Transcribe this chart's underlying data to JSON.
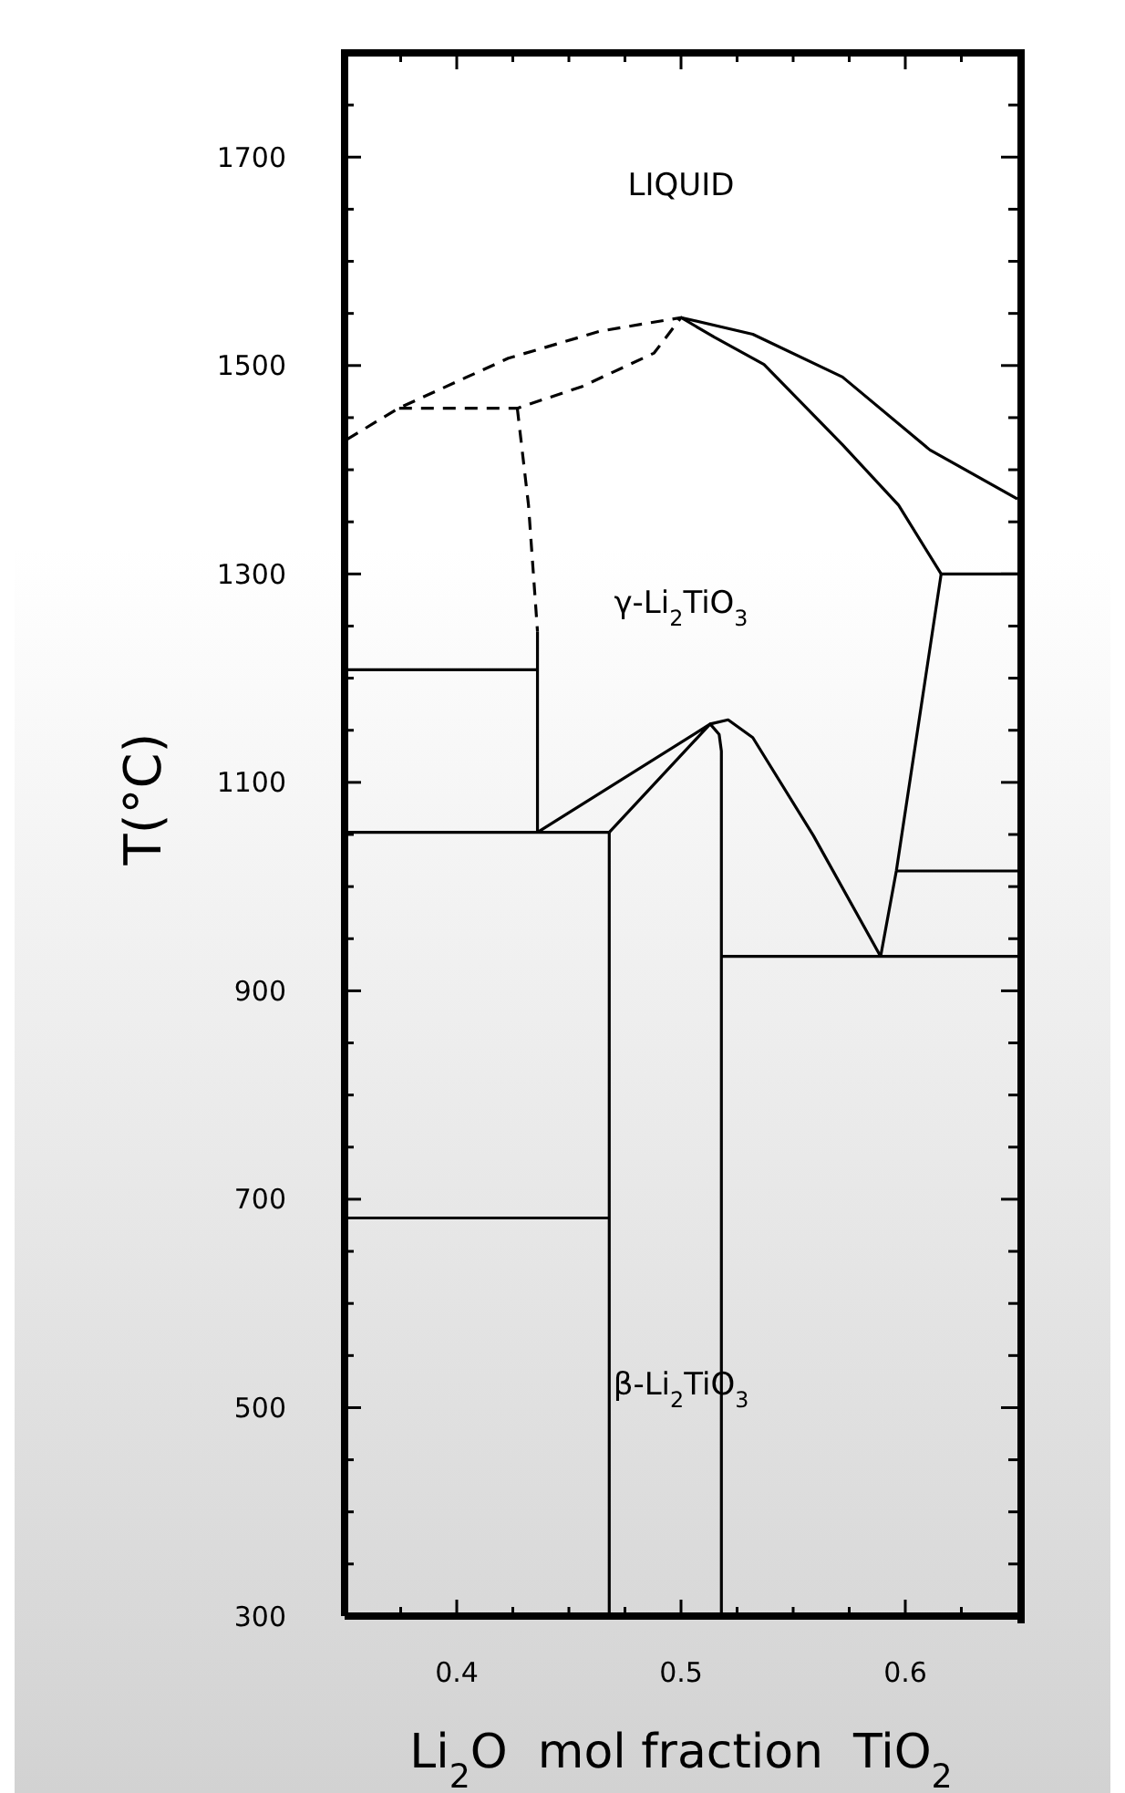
{
  "chart_data": {
    "type": "line",
    "xlabel": "Li$_{2}$O  mol fraction  TiO$_{2}$",
    "ylabel": "T(°C)",
    "xlim": [
      0.35,
      0.65
    ],
    "xticks": [
      {
        "value": 0.375,
        "label": null
      },
      0.4,
      {
        "value": 0.425,
        "label": null
      },
      {
        "value": 0.45,
        "label": null
      },
      {
        "value": 0.475,
        "label": null
      },
      0.5,
      {
        "value": 0.525,
        "label": null
      },
      {
        "value": 0.55,
        "label": null
      },
      {
        "value": 0.575,
        "label": null
      },
      0.6,
      {
        "value": 0.625,
        "label": null
      }
    ],
    "ylim": [
      300,
      1800
    ],
    "yticks": [
      300,
      {
        "value": 350,
        "label": null
      },
      {
        "value": 400,
        "label": null
      },
      {
        "value": 450,
        "label": null
      },
      500,
      {
        "value": 550,
        "label": null
      },
      {
        "value": 600,
        "label": null
      },
      {
        "value": 650,
        "label": null
      },
      700,
      {
        "value": 750,
        "label": null
      },
      {
        "value": 800,
        "label": null
      },
      {
        "value": 850,
        "label": null
      },
      900,
      {
        "value": 950,
        "label": null
      },
      {
        "value": 1000,
        "label": null
      },
      {
        "value": 1050,
        "label": null
      },
      1100,
      {
        "value": 1150,
        "label": null
      },
      {
        "value": 1200,
        "label": null
      },
      {
        "value": 1250,
        "label": null
      },
      1300,
      {
        "value": 1350,
        "label": null
      },
      {
        "value": 1400,
        "label": null
      },
      {
        "value": 1450,
        "label": null
      },
      1500,
      {
        "value": 1550,
        "label": null
      },
      {
        "value": 1600,
        "label": null
      },
      {
        "value": 1650,
        "label": null
      },
      1700,
      {
        "value": 1750,
        "label": null
      }
    ],
    "grid": false,
    "legend": false,
    "marker": "none",
    "annotations": [
      "LIQUID",
      "γ-Li$_{2}$TiO$_{3}$",
      "β-Li$_{2}$TiO$_{3}$"
    ],
    "series": [
      {
        "color": "#000000",
        "line_style": "dashed",
        "x": [
          0.351,
          0.374,
          0.423,
          0.464,
          0.5,
          0.488,
          0.456,
          0.427,
          0.374
        ],
        "values": [
          1429,
          1459,
          1507,
          1533,
          1546,
          1512,
          1480,
          1459,
          1459
        ]
      },
      {
        "color": "#000000",
        "line_style": "dashed",
        "x": [
          0.427,
          0.432,
          0.436
        ],
        "values": [
          1459,
          1366,
          1245
        ]
      },
      {
        "color": "#000000",
        "line_style": "solid",
        "x": [
          0.436,
          0.436
        ],
        "values": [
          1245,
          1052
        ]
      },
      {
        "color": "#000000",
        "line_style": "solid",
        "x": [
          0.35,
          0.436
        ],
        "values": [
          1208,
          1208
        ]
      },
      {
        "color": "#000000",
        "line_style": "solid",
        "x": [
          0.35,
          0.468
        ],
        "values": [
          1052,
          1052
        ]
      },
      {
        "color": "#000000",
        "line_style": "solid",
        "x": [
          0.468,
          0.468
        ],
        "values": [
          1052,
          300
        ]
      },
      {
        "color": "#000000",
        "line_style": "solid",
        "x": [
          0.35,
          0.468
        ],
        "values": [
          682,
          682
        ]
      },
      {
        "color": "#000000",
        "line_style": "solid",
        "x": [
          0.436,
          0.513,
          0.468
        ],
        "values": [
          1052,
          1156,
          1052
        ]
      },
      {
        "color": "#000000",
        "line_style": "solid",
        "x": [
          0.518,
          0.518,
          0.517,
          0.513,
          0.521,
          0.532,
          0.559,
          0.589
        ],
        "values": [
          300,
          1130,
          1146,
          1156,
          1160,
          1143,
          1049,
          933
        ]
      },
      {
        "color": "#000000",
        "line_style": "solid",
        "x": [
          0.518,
          0.65
        ],
        "values": [
          933,
          933
        ]
      },
      {
        "color": "#000000",
        "line_style": "solid",
        "x": [
          0.589,
          0.596,
          0.616
        ],
        "values": [
          933,
          1015,
          1300
        ]
      },
      {
        "color": "#000000",
        "line_style": "solid",
        "x": [
          0.596,
          0.65
        ],
        "values": [
          1015,
          1015
        ]
      },
      {
        "color": "#000000",
        "line_style": "solid",
        "x": [
          0.616,
          0.65
        ],
        "values": [
          1300,
          1300
        ]
      },
      {
        "color": "#000000",
        "line_style": "solid",
        "x": [
          0.5,
          0.515,
          0.537,
          0.572,
          0.597,
          0.616
        ],
        "values": [
          1546,
          1527,
          1501,
          1424,
          1366,
          1300
        ]
      },
      {
        "color": "#000000",
        "line_style": "solid",
        "x": [
          0.5,
          0.532,
          0.572,
          0.611,
          0.65
        ],
        "values": [
          1546,
          1530,
          1489,
          1419,
          1372
        ]
      }
    ]
  }
}
